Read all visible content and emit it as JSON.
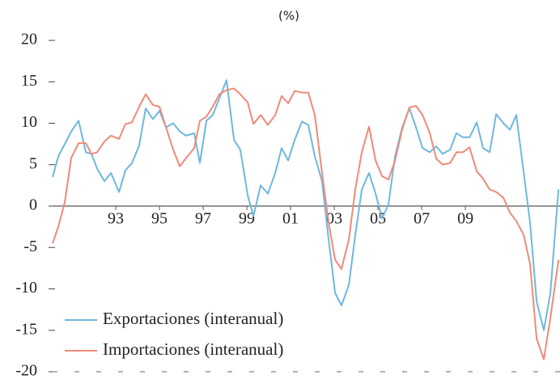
{
  "chart_data": {
    "type": "line",
    "title": "(%)",
    "x": [
      1990.11,
      1990.37,
      1990.67,
      1990.96,
      1991.3,
      1991.63,
      1991.89,
      1992.15,
      1992.48,
      1992.78,
      1993.15,
      1993.44,
      1993.74,
      1994.07,
      1994.37,
      1994.7,
      1995.0,
      1995.3,
      1995.63,
      1995.93,
      1996.22,
      1996.59,
      1996.85,
      1997.15,
      1997.44,
      1997.74,
      1998.07,
      1998.41,
      1998.7,
      1999.04,
      1999.3,
      1999.63,
      1999.96,
      2000.3,
      2000.59,
      2000.89,
      2001.19,
      2001.52,
      2001.81,
      2002.11,
      2002.44,
      2002.74,
      2003.04,
      2003.33,
      2003.67,
      2003.96,
      2004.26,
      2004.59,
      2004.89,
      2005.19,
      2005.48,
      2005.78,
      2006.11,
      2006.44,
      2006.74,
      2007.04,
      2007.37,
      2007.67,
      2007.96,
      2008.3,
      2008.59,
      2008.89,
      2009.19,
      2009.52,
      2009.81,
      2010.11,
      2010.41,
      2010.74,
      2011.04,
      2011.33,
      2011.67,
      2011.96,
      2012.26,
      2012.59,
      2012.89,
      2013.26
    ],
    "series": [
      {
        "name": "Exportaciones (interanual)",
        "color": "#6fb8e0",
        "values": [
          3.5,
          6,
          7.5,
          9,
          10.3,
          6.5,
          6.3,
          4.5,
          3,
          4,
          1.7,
          4.3,
          5.2,
          7.3,
          11.8,
          10.5,
          11.5,
          9.5,
          10,
          9,
          8.5,
          8.8,
          5.2,
          10.3,
          11,
          13,
          15.2,
          8,
          6.8,
          1.3,
          -1.2,
          2.5,
          1.5,
          4,
          7,
          5.5,
          8,
          10.2,
          9.8,
          6,
          3,
          -4,
          -10.5,
          -12,
          -9.5,
          -3.5,
          2,
          4,
          1.5,
          -1.5,
          0.2,
          6,
          9.5,
          11.8,
          9.5,
          7,
          6.5,
          7.2,
          6.3,
          6.8,
          8.8,
          8.3,
          8.3,
          10.1,
          7,
          6.5,
          11.1,
          10,
          9.2,
          11,
          4,
          -2,
          -11.5,
          -15,
          -10.5,
          2
        ]
      },
      {
        "name": "Importaciones (interanual)",
        "color": "#f08a78",
        "values": [
          -4.5,
          -2.5,
          0.5,
          5.8,
          7.6,
          7.6,
          6.3,
          6.5,
          7.8,
          8.5,
          8.1,
          9.9,
          10.1,
          12,
          13.5,
          12.2,
          12,
          9.5,
          6.8,
          4.8,
          5.8,
          7,
          10.3,
          10.8,
          12,
          13.5,
          14,
          14.2,
          13.5,
          12.5,
          9.9,
          11,
          9.8,
          11,
          13.3,
          12.4,
          13.9,
          13.7,
          13.7,
          11,
          4,
          -2,
          -6.5,
          -7.6,
          -4,
          2,
          6.5,
          9.6,
          5.5,
          3.6,
          3.2,
          5.5,
          9.3,
          11.9,
          12.1,
          11,
          8.8,
          5.7,
          5,
          5.2,
          6.5,
          6.5,
          7.1,
          4.2,
          3.3,
          2,
          1.7,
          1,
          -0.8,
          -1.8,
          -3.5,
          -7,
          -16,
          -18.5,
          -13.5,
          -6.5
        ]
      }
    ],
    "xlim": [
      1990.11,
      2013.33
    ],
    "xticks": [
      {
        "value": 1993,
        "label": "93"
      },
      {
        "value": 1995,
        "label": "95"
      },
      {
        "value": 1997,
        "label": "97"
      },
      {
        "value": 1999,
        "label": "99"
      },
      {
        "value": 2001,
        "label": "01"
      },
      {
        "value": 2003,
        "label": "03"
      },
      {
        "value": 2005,
        "label": "05"
      },
      {
        "value": 2007,
        "label": "07"
      },
      {
        "value": 2009,
        "label": "09"
      }
    ],
    "ylim": [
      -20,
      20
    ],
    "yticks": [
      -20,
      -15,
      -10,
      -5,
      0,
      5,
      10,
      15,
      20
    ],
    "legend": "lower left"
  }
}
